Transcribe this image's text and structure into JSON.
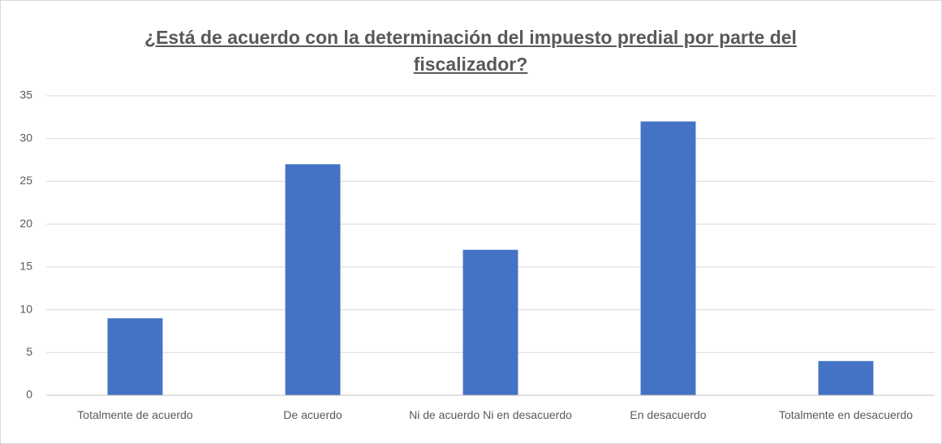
{
  "chart_data": {
    "type": "bar",
    "title": "¿Está de acuerdo con la determinación del impuesto predial por parte del fiscalizador?",
    "categories": [
      "Totalmente de acuerdo",
      "De acuerdo",
      "Ni de acuerdo Ni en desacuerdo",
      "En desacuerdo",
      "Totalmente en desacuerdo"
    ],
    "values": [
      9,
      27,
      17,
      32,
      4
    ],
    "color": "#4472c4",
    "ylim": [
      0,
      35
    ],
    "yticks": [
      0,
      5,
      10,
      15,
      20,
      25,
      30,
      35
    ],
    "grid": true
  }
}
